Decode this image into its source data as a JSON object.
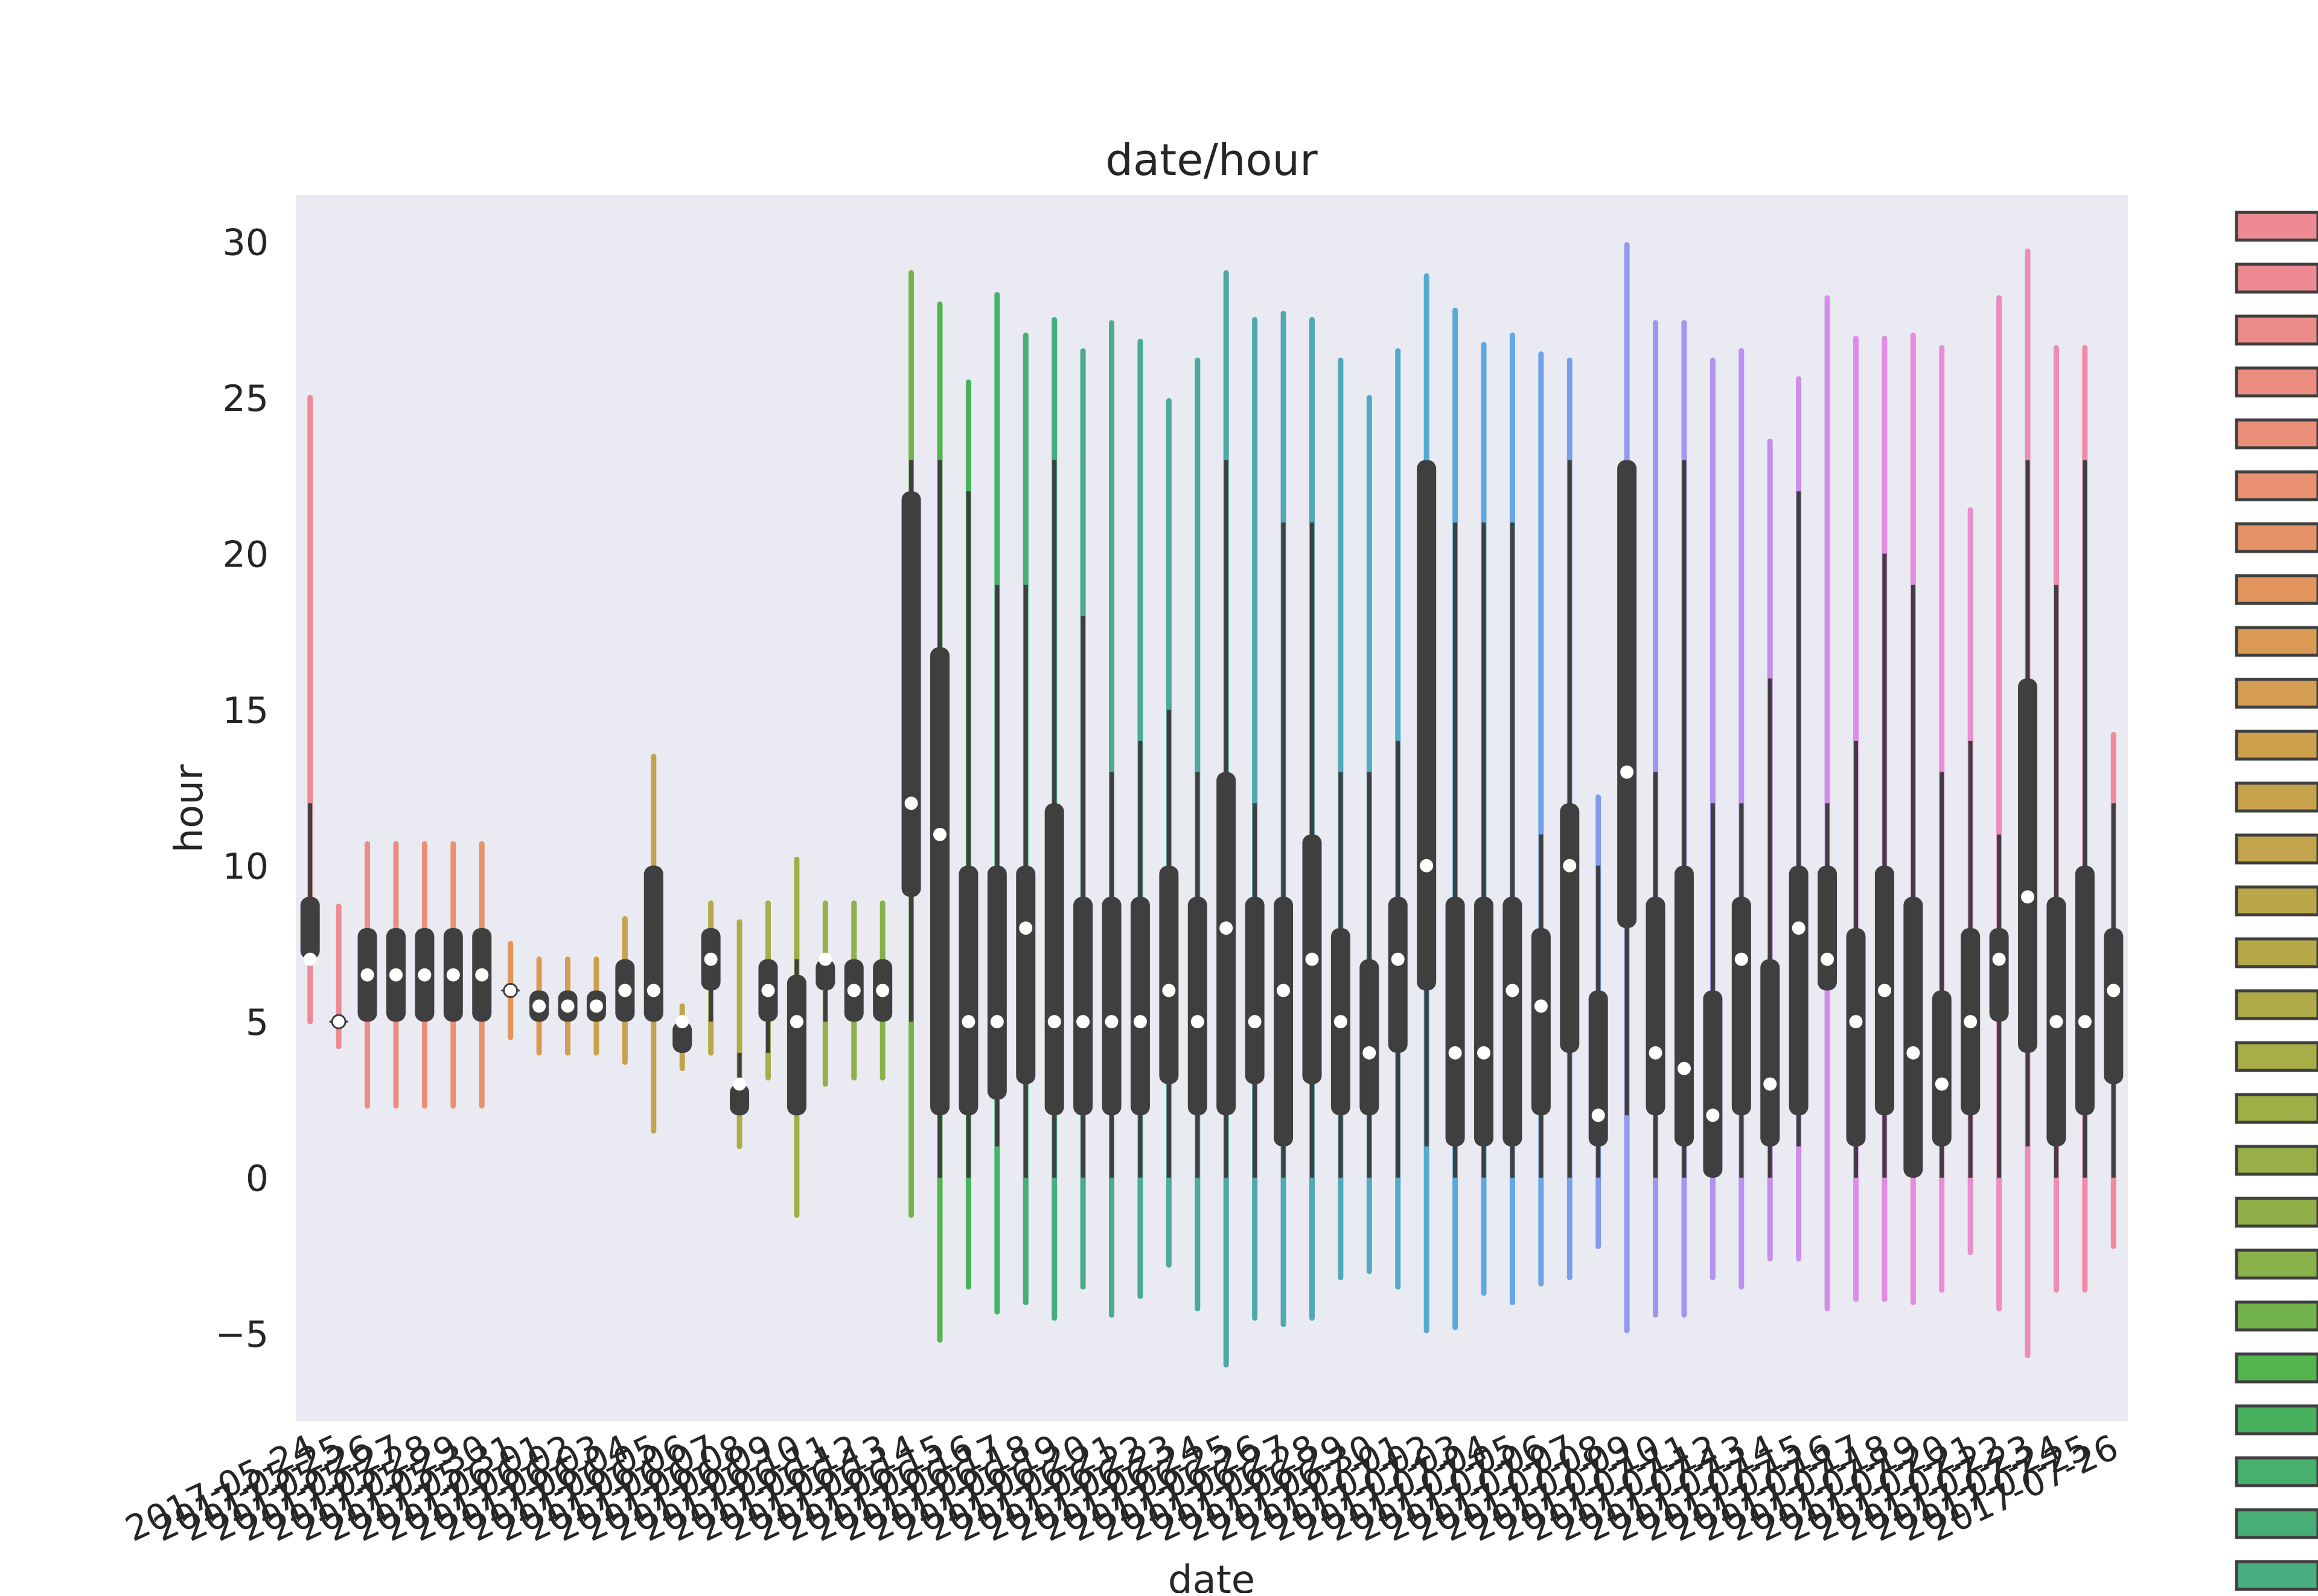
{
  "chart_data": {
    "type": "violin",
    "title": "date/hour",
    "xlabel": "date",
    "ylabel": "hour",
    "ylim": [
      -7.8,
      31.5
    ],
    "yticks": [
      -5,
      0,
      5,
      10,
      15,
      20,
      25,
      30
    ],
    "ytick_labels": [
      "−5",
      "0",
      "5",
      "10",
      "15",
      "20",
      "25",
      "30"
    ],
    "grid": false,
    "legend_position": "right",
    "legend_label_prefix": "2",
    "visible_x_tick_labels": [
      "2017-05-24",
      "2017-05-25",
      "2017-07-25",
      "2017-07-26"
    ],
    "series_start_date": "2017-05-24",
    "series_end_date": "2017-07-26",
    "categories": [
      "2017-05-24",
      "2017-05-25",
      "2017-05-26",
      "2017-05-27",
      "2017-05-28",
      "2017-05-29",
      "2017-05-30",
      "2017-05-31",
      "2017-06-01",
      "2017-06-02",
      "2017-06-03",
      "2017-06-04",
      "2017-06-05",
      "2017-06-06",
      "2017-06-07",
      "2017-06-08",
      "2017-06-09",
      "2017-06-10",
      "2017-06-11",
      "2017-06-12",
      "2017-06-13",
      "2017-06-14",
      "2017-06-15",
      "2017-06-16",
      "2017-06-17",
      "2017-06-18",
      "2017-06-19",
      "2017-06-20",
      "2017-06-21",
      "2017-06-22",
      "2017-06-23",
      "2017-06-24",
      "2017-06-25",
      "2017-06-26",
      "2017-06-27",
      "2017-06-28",
      "2017-06-29",
      "2017-06-30",
      "2017-07-01",
      "2017-07-02",
      "2017-07-03",
      "2017-07-04",
      "2017-07-05",
      "2017-07-06",
      "2017-07-07",
      "2017-07-08",
      "2017-07-09",
      "2017-07-10",
      "2017-07-11",
      "2017-07-12",
      "2017-07-13",
      "2017-07-14",
      "2017-07-15",
      "2017-07-16",
      "2017-07-17",
      "2017-07-18",
      "2017-07-19",
      "2017-07-20",
      "2017-07-21",
      "2017-07-22",
      "2017-07-23",
      "2017-07-24",
      "2017-07-25",
      "2017-07-26"
    ],
    "violins": [
      {
        "date": "2017-05-24",
        "min": 5,
        "max": 25,
        "q1": 7,
        "q3": 9,
        "median": 7,
        "wlo": 7,
        "whi": 12,
        "color": "#ee8a93"
      },
      {
        "date": "2017-05-25",
        "min": 4.2,
        "max": 8.7,
        "q1": 5,
        "q3": 5,
        "median": 5,
        "wlo": 5,
        "whi": 5,
        "color": "#ee8a93"
      },
      {
        "date": "2017-05-26",
        "min": 2.3,
        "max": 10.7,
        "q1": 5,
        "q3": 8,
        "median": 6.5,
        "wlo": 5,
        "whi": 8,
        "color": "#ec8c88"
      },
      {
        "date": "2017-05-27",
        "min": 2.3,
        "max": 10.7,
        "q1": 5,
        "q3": 8,
        "median": 6.5,
        "wlo": 5,
        "whi": 8,
        "color": "#eb8d81"
      },
      {
        "date": "2017-05-28",
        "min": 2.3,
        "max": 10.7,
        "q1": 5,
        "q3": 8,
        "median": 6.5,
        "wlo": 5,
        "whi": 8,
        "color": "#ea8f79"
      },
      {
        "date": "2017-05-29",
        "min": 2.3,
        "max": 10.7,
        "q1": 5,
        "q3": 8,
        "median": 6.5,
        "wlo": 5,
        "whi": 8,
        "color": "#e99170"
      },
      {
        "date": "2017-05-30",
        "min": 2.3,
        "max": 10.7,
        "q1": 5,
        "q3": 8,
        "median": 6.5,
        "wlo": 5,
        "whi": 8,
        "color": "#e69267"
      },
      {
        "date": "2017-05-31",
        "min": 4.5,
        "max": 7.5,
        "q1": 6,
        "q3": 6,
        "median": 6,
        "wlo": 6,
        "whi": 6,
        "color": "#e1955c"
      },
      {
        "date": "2017-06-01",
        "min": 4,
        "max": 7,
        "q1": 5,
        "q3": 6,
        "median": 5.5,
        "wlo": 5,
        "whi": 6,
        "color": "#db9a54"
      },
      {
        "date": "2017-06-02",
        "min": 4,
        "max": 7,
        "q1": 5,
        "q3": 6,
        "median": 5.5,
        "wlo": 5,
        "whi": 6,
        "color": "#d49d51"
      },
      {
        "date": "2017-06-03",
        "min": 4,
        "max": 7,
        "q1": 5,
        "q3": 6,
        "median": 5.5,
        "wlo": 5,
        "whi": 6,
        "color": "#cda04e"
      },
      {
        "date": "2017-06-04",
        "min": 3.7,
        "max": 8.3,
        "q1": 5,
        "q3": 7,
        "median": 6,
        "wlo": 5,
        "whi": 7,
        "color": "#c7a24d"
      },
      {
        "date": "2017-06-05",
        "min": 1.5,
        "max": 13.5,
        "q1": 5,
        "q3": 10,
        "median": 6,
        "wlo": 5,
        "whi": 10,
        "color": "#c1a44b"
      },
      {
        "date": "2017-06-06",
        "min": 3.5,
        "max": 5.5,
        "q1": 4,
        "q3": 5,
        "median": 5,
        "wlo": 4,
        "whi": 5,
        "color": "#bba74a"
      },
      {
        "date": "2017-06-07",
        "min": 4,
        "max": 8.8,
        "q1": 6,
        "q3": 8,
        "median": 7,
        "wlo": 5,
        "whi": 8,
        "color": "#b5a949"
      },
      {
        "date": "2017-06-08",
        "min": 1,
        "max": 8.2,
        "q1": 2,
        "q3": 3,
        "median": 3,
        "wlo": 2,
        "whi": 4,
        "color": "#aeab48"
      },
      {
        "date": "2017-06-09",
        "min": 3.2,
        "max": 8.8,
        "q1": 5,
        "q3": 7,
        "median": 6,
        "wlo": 4,
        "whi": 7,
        "color": "#a7ad47"
      },
      {
        "date": "2017-06-10",
        "min": -1.2,
        "max": 10.2,
        "q1": 2,
        "q3": 6.5,
        "median": 5,
        "wlo": 2,
        "whi": 7,
        "color": "#a0ae47"
      },
      {
        "date": "2017-06-11",
        "min": 3,
        "max": 8.8,
        "q1": 6,
        "q3": 7,
        "median": 7,
        "wlo": 5,
        "whi": 7,
        "color": "#98af48"
      },
      {
        "date": "2017-06-12",
        "min": 3.2,
        "max": 8.8,
        "q1": 5,
        "q3": 7,
        "median": 6,
        "wlo": 5,
        "whi": 7,
        "color": "#90b049"
      },
      {
        "date": "2017-06-13",
        "min": 3.2,
        "max": 8.8,
        "q1": 5,
        "q3": 7,
        "median": 6,
        "wlo": 5,
        "whi": 7,
        "color": "#88b14a"
      },
      {
        "date": "2017-06-14",
        "min": -1.2,
        "max": 29,
        "q1": 9,
        "q3": 22,
        "median": 12,
        "wlo": 5,
        "whi": 23,
        "color": "#72b34b"
      },
      {
        "date": "2017-06-15",
        "min": -5.2,
        "max": 28,
        "q1": 2,
        "q3": 17,
        "median": 11,
        "wlo": 0,
        "whi": 23,
        "color": "#52b44d"
      },
      {
        "date": "2017-06-16",
        "min": -3.5,
        "max": 25.5,
        "q1": 2,
        "q3": 10,
        "median": 5,
        "wlo": 0,
        "whi": 22,
        "color": "#48b15d"
      },
      {
        "date": "2017-06-17",
        "min": -4.3,
        "max": 28.3,
        "q1": 2.5,
        "q3": 10,
        "median": 5,
        "wlo": 1,
        "whi": 19,
        "color": "#47b06c"
      },
      {
        "date": "2017-06-18",
        "min": -4,
        "max": 27,
        "q1": 3,
        "q3": 10,
        "median": 8,
        "wlo": 0,
        "whi": 19,
        "color": "#47ae78"
      },
      {
        "date": "2017-06-19",
        "min": -4.5,
        "max": 27.5,
        "q1": 2,
        "q3": 12,
        "median": 5,
        "wlo": 0,
        "whi": 23,
        "color": "#48ad81"
      },
      {
        "date": "2017-06-20",
        "min": -3.5,
        "max": 26.5,
        "q1": 2,
        "q3": 9,
        "median": 5,
        "wlo": 0,
        "whi": 18,
        "color": "#49ac88"
      },
      {
        "date": "2017-06-21",
        "min": -4.4,
        "max": 27.4,
        "q1": 2,
        "q3": 9,
        "median": 5,
        "wlo": 0,
        "whi": 13,
        "color": "#4aab8f"
      },
      {
        "date": "2017-06-22",
        "min": -3.8,
        "max": 26.8,
        "q1": 2,
        "q3": 9,
        "median": 5,
        "wlo": 0,
        "whi": 14,
        "color": "#4baa95"
      },
      {
        "date": "2017-06-23",
        "min": -2.8,
        "max": 24.9,
        "q1": 3,
        "q3": 10,
        "median": 6,
        "wlo": 0,
        "whi": 15,
        "color": "#4ca99b"
      },
      {
        "date": "2017-06-24",
        "min": -4.2,
        "max": 26.2,
        "q1": 2,
        "q3": 9,
        "median": 5,
        "wlo": 0,
        "whi": 13,
        "color": "#4da9a1"
      },
      {
        "date": "2017-06-25",
        "min": -6,
        "max": 29,
        "q1": 2,
        "q3": 13,
        "median": 8,
        "wlo": 0,
        "whi": 23,
        "color": "#4ea8a6"
      },
      {
        "date": "2017-06-26",
        "min": -4.5,
        "max": 27.5,
        "q1": 3,
        "q3": 9,
        "median": 5,
        "wlo": 0,
        "whi": 12,
        "color": "#4fa8ac"
      },
      {
        "date": "2017-06-27",
        "min": -4.7,
        "max": 27.7,
        "q1": 1,
        "q3": 9,
        "median": 6,
        "wlo": 0,
        "whi": 21,
        "color": "#50a8b1"
      },
      {
        "date": "2017-06-28",
        "min": -4.5,
        "max": 27.5,
        "q1": 3,
        "q3": 11,
        "median": 7,
        "wlo": 0,
        "whi": 21,
        "color": "#51a8b7"
      },
      {
        "date": "2017-06-29",
        "min": -3.2,
        "max": 26.2,
        "q1": 2,
        "q3": 8,
        "median": 5,
        "wlo": 0,
        "whi": 13,
        "color": "#52a8bc"
      },
      {
        "date": "2017-06-30",
        "min": -3,
        "max": 25,
        "q1": 2,
        "q3": 7,
        "median": 4,
        "wlo": 0,
        "whi": 13,
        "color": "#53a8c2"
      },
      {
        "date": "2017-07-01",
        "min": -3.5,
        "max": 26.5,
        "q1": 4,
        "q3": 9,
        "median": 7,
        "wlo": 0,
        "whi": 14,
        "color": "#54a9c8"
      },
      {
        "date": "2017-07-02",
        "min": -4.9,
        "max": 28.9,
        "q1": 6,
        "q3": 23,
        "median": 10,
        "wlo": 1,
        "whi": 23,
        "color": "#56aad0"
      },
      {
        "date": "2017-07-03",
        "min": -4.8,
        "max": 27.8,
        "q1": 1,
        "q3": 9,
        "median": 4,
        "wlo": 0,
        "whi": 21,
        "color": "#59aad7"
      },
      {
        "date": "2017-07-04",
        "min": -3.7,
        "max": 26.7,
        "q1": 1,
        "q3": 9,
        "median": 4,
        "wlo": 0,
        "whi": 21,
        "color": "#5ea9de"
      },
      {
        "date": "2017-07-05",
        "min": -4,
        "max": 27,
        "q1": 1,
        "q3": 9,
        "median": 6,
        "wlo": 0,
        "whi": 21,
        "color": "#65a6e3"
      },
      {
        "date": "2017-07-06",
        "min": -3.4,
        "max": 26.4,
        "q1": 2,
        "q3": 8,
        "median": 5.5,
        "wlo": 0,
        "whi": 11,
        "color": "#6fa3e8"
      },
      {
        "date": "2017-07-07",
        "min": -3.2,
        "max": 26.2,
        "q1": 4,
        "q3": 12,
        "median": 10,
        "wlo": 0,
        "whi": 23,
        "color": "#799fea"
      },
      {
        "date": "2017-07-08",
        "min": -2.2,
        "max": 12.2,
        "q1": 1,
        "q3": 6,
        "median": 2,
        "wlo": 0,
        "whi": 10,
        "color": "#849bec"
      },
      {
        "date": "2017-07-09",
        "min": -4.9,
        "max": 29.9,
        "q1": 8,
        "q3": 23,
        "median": 13,
        "wlo": 2,
        "whi": 23,
        "color": "#9198ee"
      },
      {
        "date": "2017-07-10",
        "min": -4.4,
        "max": 27.4,
        "q1": 2,
        "q3": 9,
        "median": 4,
        "wlo": 0,
        "whi": 13,
        "color": "#9c96ef"
      },
      {
        "date": "2017-07-11",
        "min": -4.4,
        "max": 27.4,
        "q1": 1,
        "q3": 10,
        "median": 3.5,
        "wlo": 0,
        "whi": 23,
        "color": "#a694ef"
      },
      {
        "date": "2017-07-12",
        "min": -3.2,
        "max": 26.2,
        "q1": 0,
        "q3": 6,
        "median": 2,
        "wlo": 0,
        "whi": 12,
        "color": "#b092ef"
      },
      {
        "date": "2017-07-13",
        "min": -3.5,
        "max": 26.5,
        "q1": 2,
        "q3": 9,
        "median": 7,
        "wlo": 0,
        "whi": 12,
        "color": "#b991ee"
      },
      {
        "date": "2017-07-14",
        "min": -2.6,
        "max": 23.6,
        "q1": 1,
        "q3": 7,
        "median": 3,
        "wlo": 0,
        "whi": 16,
        "color": "#c28fee"
      },
      {
        "date": "2017-07-15",
        "min": -2.6,
        "max": 25.6,
        "q1": 2,
        "q3": 10,
        "median": 8,
        "wlo": 1,
        "whi": 22,
        "color": "#cb8eec"
      },
      {
        "date": "2017-07-16",
        "min": -4.2,
        "max": 28.2,
        "q1": 6,
        "q3": 10,
        "median": 7,
        "wlo": 6,
        "whi": 12,
        "color": "#d48deb"
      },
      {
        "date": "2017-07-17",
        "min": -3.9,
        "max": 26.9,
        "q1": 1,
        "q3": 8,
        "median": 5,
        "wlo": 0,
        "whi": 14,
        "color": "#dc8de8"
      },
      {
        "date": "2017-07-18",
        "min": -3.9,
        "max": 26.9,
        "q1": 2,
        "q3": 10,
        "median": 6,
        "wlo": 0,
        "whi": 20,
        "color": "#e28ce3"
      },
      {
        "date": "2017-07-19",
        "min": -4,
        "max": 27,
        "q1": 0,
        "q3": 9,
        "median": 4,
        "wlo": 0,
        "whi": 19,
        "color": "#e68cdc"
      },
      {
        "date": "2017-07-20",
        "min": -3.6,
        "max": 26.6,
        "q1": 1,
        "q3": 6,
        "median": 3,
        "wlo": 0,
        "whi": 13,
        "color": "#e98cd5"
      },
      {
        "date": "2017-07-21",
        "min": -2.4,
        "max": 21.4,
        "q1": 2,
        "q3": 8,
        "median": 5,
        "wlo": 0,
        "whi": 14,
        "color": "#eb8ccc"
      },
      {
        "date": "2017-07-22",
        "min": -4.2,
        "max": 28.2,
        "q1": 5,
        "q3": 8,
        "median": 7,
        "wlo": 0,
        "whi": 11,
        "color": "#ec8cc3"
      },
      {
        "date": "2017-07-23",
        "min": -5.7,
        "max": 29.7,
        "q1": 4,
        "q3": 16,
        "median": 9,
        "wlo": 1,
        "whi": 23,
        "color": "#ed8cba"
      },
      {
        "date": "2017-07-24",
        "min": -3.6,
        "max": 26.6,
        "q1": 1,
        "q3": 9,
        "median": 5,
        "wlo": 0,
        "whi": 19,
        "color": "#ee8cb1"
      },
      {
        "date": "2017-07-25",
        "min": -3.6,
        "max": 26.6,
        "q1": 2,
        "q3": 10,
        "median": 5,
        "wlo": 0,
        "whi": 23,
        "color": "#ee8ca8"
      },
      {
        "date": "2017-07-26",
        "min": -2.2,
        "max": 14.2,
        "q1": 3,
        "q3": 8,
        "median": 6,
        "wlo": 0,
        "whi": 12,
        "color": "#ee8c9e"
      }
    ]
  }
}
